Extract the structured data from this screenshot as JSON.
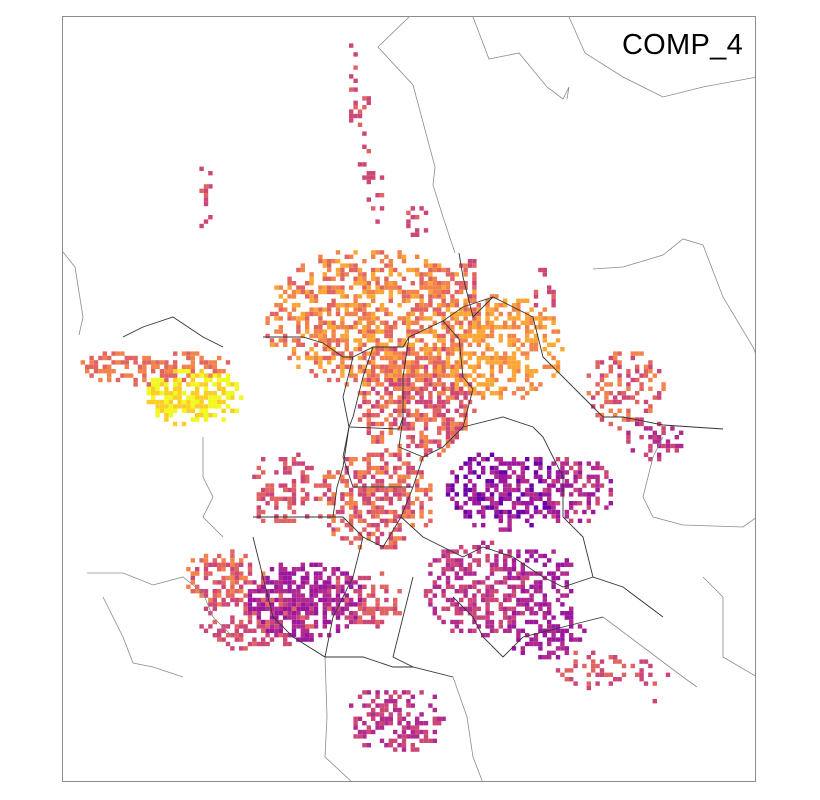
{
  "map": {
    "title": "COMP_4",
    "palette": {
      "c0": "#0d0887",
      "c1": "#6a00a8",
      "c2": "#9c179e",
      "c3": "#b12a90",
      "c4": "#cc4778",
      "c5": "#e16462",
      "c6": "#f2844b",
      "c7": "#fca636",
      "c8": "#fcce25",
      "c9": "#f0f921"
    },
    "colors": {
      "background": "#ffffff",
      "frame": "#8c8c8c",
      "outer_boundary": "#8c8c8c",
      "district_boundary": "#333333"
    }
  }
}
